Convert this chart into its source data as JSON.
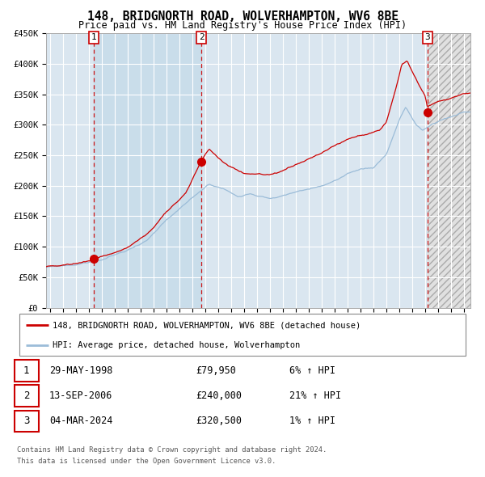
{
  "title": "148, BRIDGNORTH ROAD, WOLVERHAMPTON, WV6 8BE",
  "subtitle": "Price paid vs. HM Land Registry's House Price Index (HPI)",
  "legend_line1": "148, BRIDGNORTH ROAD, WOLVERHAMPTON, WV6 8BE (detached house)",
  "legend_line2": "HPI: Average price, detached house, Wolverhampton",
  "sale1_date": "29-MAY-1998",
  "sale1_price": "£79,950",
  "sale1_hpi": "6% ↑ HPI",
  "sale2_date": "13-SEP-2006",
  "sale2_price": "£240,000",
  "sale2_hpi": "21% ↑ HPI",
  "sale3_date": "04-MAR-2024",
  "sale3_price": "£320,500",
  "sale3_hpi": "1% ↑ HPI",
  "footer1": "Contains HM Land Registry data © Crown copyright and database right 2024.",
  "footer2": "This data is licensed under the Open Government Licence v3.0.",
  "hpi_color": "#9bbcd8",
  "price_color": "#cc0000",
  "sale_marker_color": "#cc0000",
  "bg_color": "#ffffff",
  "plot_bg_color": "#dae6f0",
  "shaded_bg_color": "#c8dcea",
  "future_bg_color": "#e0e0e0",
  "grid_color": "#ffffff",
  "ylim": [
    0,
    450000
  ],
  "xlim_start": 1994.7,
  "xlim_end": 2027.5,
  "sale1_year": 1998.38,
  "sale2_year": 2006.71,
  "sale3_year": 2024.17,
  "sale1_value": 79950,
  "sale2_value": 240000,
  "sale3_value": 320500
}
